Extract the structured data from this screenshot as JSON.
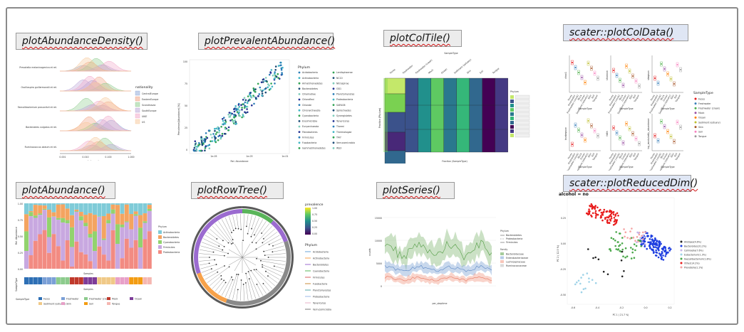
{
  "titles": {
    "p1": "plotAbundanceDensity()",
    "p2": "plotPrevalentAbundance()",
    "p3": "plotColTile()",
    "p4": "scater::plotColData()",
    "p5": "plotAbundance()",
    "p6": "plotRowTree()",
    "p7": "plotSeries()",
    "p8": "scater::plotReducedDim()"
  },
  "density": {
    "taxa": [
      "Prevotella melaninogenica et rel.",
      "Oscillospira guillermondii et rel.",
      "Faecalibacterium prausnitzii et rel.",
      "Bacteroides vulgatus et rel.",
      "Ruminococcus obeum et rel."
    ],
    "xlabel": "relabundance",
    "xticks": [
      "0.001",
      "0.010",
      "0.100",
      "1.000"
    ],
    "legend_title": "nationality",
    "legend": [
      "CentralEurope",
      "EasternEurope",
      "Scandinavia",
      "SouthEurope",
      "UKIE",
      "US"
    ],
    "colors": [
      "#8ea8d8",
      "#f0a080",
      "#8ccb8c",
      "#b9a3d6",
      "#f2a6c8",
      "#f7c89a"
    ]
  },
  "prevalent": {
    "ylabel": "Prevalence(Abundance) [%]",
    "xlabel": "Rel. Abundance",
    "yticks": [
      "100",
      "75",
      "50",
      "25",
      "0"
    ],
    "xticks": [
      "1e-05",
      "1e-03",
      "1e-01"
    ],
    "legend_title": "Phylum",
    "legend_col1": [
      "Acidobacteria",
      "Actinobacteria",
      "Armatimonadetes",
      "Bacteroidetes",
      "Chlamydiae",
      "Chloroflexi",
      "Chlorobi",
      "Chrenarchaeota",
      "Cyanobacteria",
      "Elusimicrobia",
      "Euryarchaeota",
      "Fibrobacteres",
      "Firmicutes",
      "Fusobacteria",
      "Gemmatimonadetes"
    ],
    "legend_col2": [
      "Lentisphaerae",
      "NC10",
      "Nitrospirae",
      "OD1",
      "Planctomycetes",
      "Proteobacteria",
      "SAR406",
      "Spirochaetes",
      "Synergistetes",
      "Tenericutes",
      "Thermi",
      "Thermotogae",
      "TM7",
      "Verrucomicrobia",
      "WS3"
    ]
  },
  "coltile": {
    "top_label": "SampleType",
    "ylabel": "Fraction (Phylum)",
    "xlabel": "Fraction (SampleType)",
    "columns": [
      "Feces",
      "Freshwater",
      "Freshwater (creek)",
      "Mock",
      "Ocean",
      "Sediment (estuary)",
      "Skin",
      "Soil",
      "Tongue"
    ],
    "legend_title": "Phylum"
  },
  "coldata": {
    "ylabels": [
      "chao1",
      "shannon",
      "simpson",
      "invsimpson",
      "faith",
      "log_modularity_abundance"
    ],
    "xlabel": "SampleType",
    "legend_title": "SampleType",
    "legend": [
      "Feces",
      "Freshwater",
      "Freshwater (creek)",
      "Mock",
      "Ocean",
      "Sediment (estuary)",
      "Skin",
      "Soil",
      "Tongue"
    ],
    "colors": [
      "#e41a1c",
      "#377eb8",
      "#4daf4a",
      "#984ea3",
      "#ff7f00",
      "#bdbd2a",
      "#a65628",
      "#f781bf",
      "#999999"
    ]
  },
  "abundance": {
    "ylabel": "Rel. Abundance",
    "xlabel": "Samples",
    "bottom_ylabel": "SampleType",
    "legend_title": "Phylum",
    "legend": [
      "Actinobacteria",
      "Bacteroidetes",
      "Cyanobacteria",
      "Firmicutes",
      "Proteobacteria"
    ],
    "colors": [
      "#7fcbd8",
      "#f4a460",
      "#92d36e",
      "#c8a8e0",
      "#f28b82"
    ],
    "sampletype_label": "SampleType",
    "sampletype_legend": [
      "Feces",
      "Freshwater",
      "Freshwater (creek)",
      "Mock",
      "Ocean",
      "Sediment (estuary)",
      "Skin",
      "Soil",
      "Tongue"
    ],
    "yticks": [
      "1.00",
      "0.75",
      "0.50",
      "0.25",
      "0.00"
    ]
  },
  "rowtree": {
    "prevalence_title": "prevalence",
    "prevalence_ticks": [
      "1.00",
      "0.75",
      "0.50",
      "0.25",
      "0.00"
    ],
    "phylum_title": "Phylum",
    "phyla": [
      "Acidobacteria",
      "Actinobacteria",
      "Bacteroidetes",
      "Cyanobacteria",
      "Firmicutes",
      "Fusobacteria",
      "Planctomycetes",
      "Proteobacteria",
      "Tenericutes",
      "Verrucomicrobia"
    ],
    "colors": [
      "#6aa6d8",
      "#f7a24b",
      "#9b6bd0",
      "#5ab55a",
      "#d95f5f",
      "#c88b3a",
      "#57a7a7",
      "#9bb8e8",
      "#e7b2c9",
      "#7a7a7a"
    ]
  },
  "series": {
    "ylabel": "counts",
    "xlabel": "per_steptime",
    "legend1_title": "Phylum",
    "legend1": [
      "Bacteroidetes",
      "Proteobacteria",
      "Firmicutes"
    ],
    "legend2_title": "Family",
    "legend2": [
      "Bacteroidaceae",
      "Enterobacteriaceae",
      "Lachnospiraceae",
      "Ruminococcaceae"
    ],
    "colors": [
      "#69a85a",
      "#86a8d8",
      "#f2a08c",
      "#c0c0c0"
    ],
    "yticks": [
      "15000",
      "10000",
      "5000",
      "0"
    ]
  },
  "reduced": {
    "subtitle": "alcohol = no",
    "xlabel": "PC 1 ( 21.7 %)",
    "ylabel": "PC 2 ( 12.5 %)",
    "xticks": [
      "-0.6",
      "-0.4",
      "-0.2",
      "0.0",
      "0.2"
    ],
    "yticks": [
      "0.25",
      "0.00",
      "-0.25",
      "-0.50"
    ],
    "legend": [
      "Alistipes(4.6%)",
      "Bacteroides(31.2%)",
      "Collinsella(7.6%)",
      "Eubacterium(1.3%)",
      "Faecalibacterium(1.8%)",
      "Other(14.2%)",
      "Prevotella(1.1%)"
    ],
    "colors": [
      "#222222",
      "#1f3fe0",
      "#c6b5e6",
      "#9fd3e8",
      "#4aa84a",
      "#e81c1c",
      "#f5a3a3"
    ]
  }
}
